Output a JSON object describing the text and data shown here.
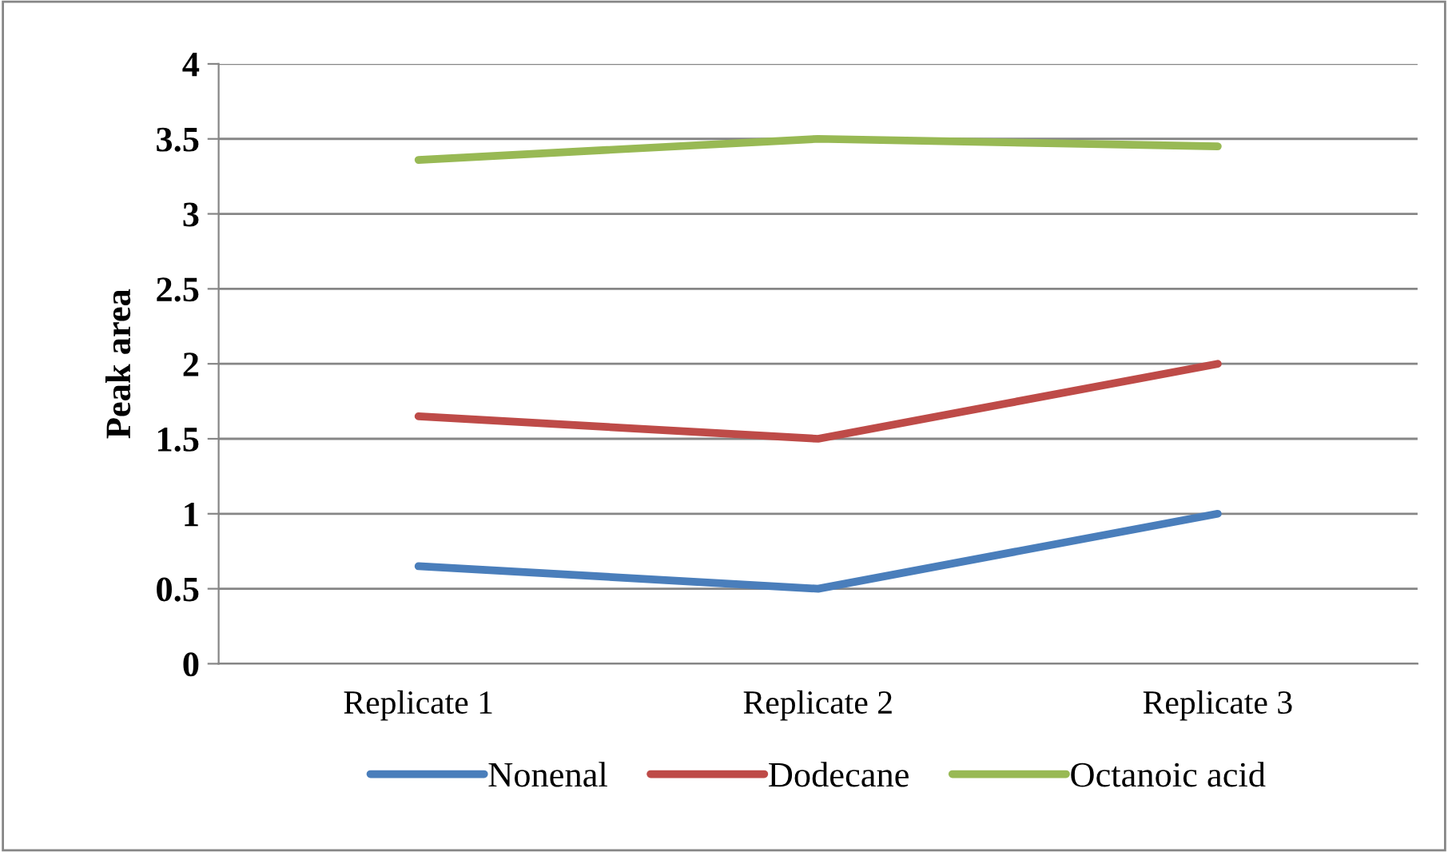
{
  "chart_data": {
    "type": "line",
    "ylabel": "Peak area",
    "categories": [
      "Replicate 1",
      "Replicate 2",
      "Replicate 3"
    ],
    "series": [
      {
        "name": "Nonenal",
        "color": "#4a7ebb",
        "values": [
          0.65,
          0.5,
          1.0
        ]
      },
      {
        "name": "Dodecane",
        "color": "#be4b48",
        "values": [
          1.65,
          1.5,
          2.0
        ]
      },
      {
        "name": "Octanoic acid",
        "color": "#98b954",
        "values": [
          3.36,
          3.5,
          3.45
        ]
      }
    ],
    "ylim": [
      0,
      4
    ],
    "yticks": [
      0,
      0.5,
      1,
      1.5,
      2,
      2.5,
      3,
      3.5,
      4
    ],
    "grid": "y",
    "legend": "bottom",
    "marker": "none",
    "line_style": "solid"
  }
}
